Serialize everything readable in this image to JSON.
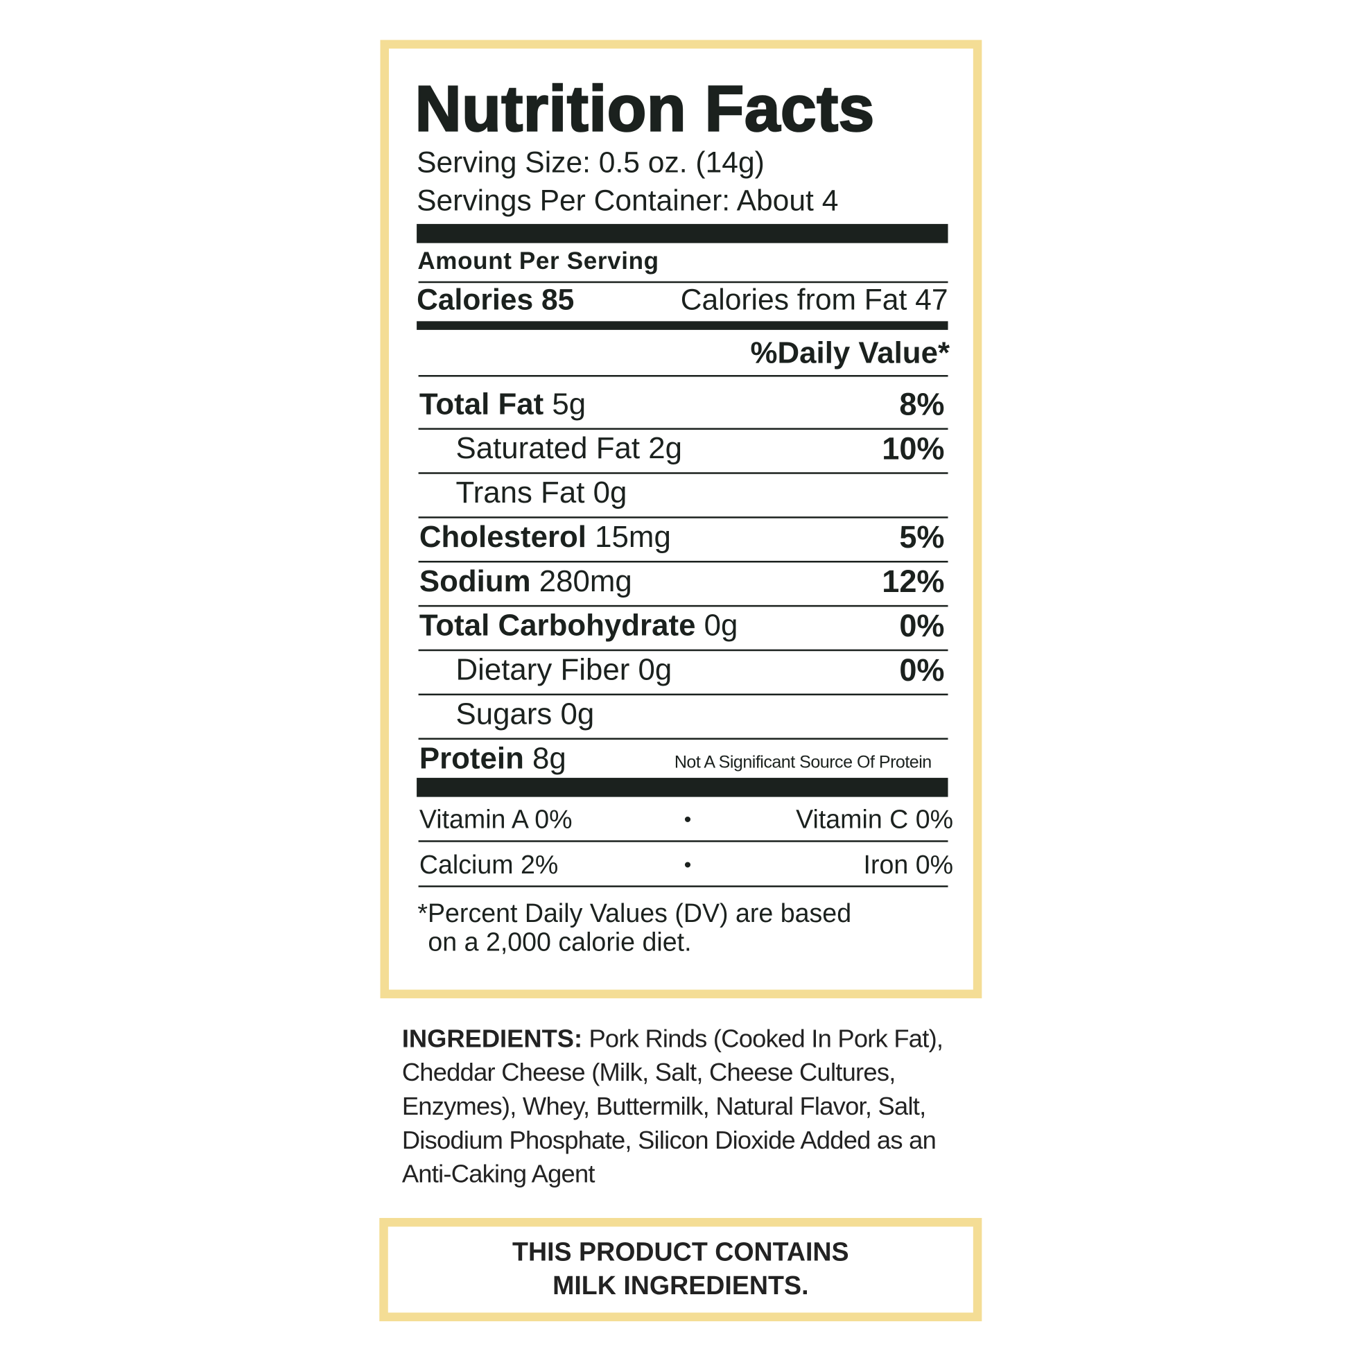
{
  "header": {
    "title": "Nutrition Facts",
    "serving_size": "Serving Size: 0.5 oz. (14g)",
    "servings_per_container": "Servings Per Container: About 4"
  },
  "amount_per_serving": "Amount Per Serving",
  "calories": {
    "label": "Calories 85",
    "from_fat": "Calories from Fat 47"
  },
  "daily_value_header": "%Daily Value*",
  "nutrients": [
    {
      "name": "Total Fat",
      "amount": "5g",
      "dv": "8%",
      "sub": [
        {
          "name": "Saturated Fat",
          "amount": "2g",
          "dv": "10%"
        },
        {
          "name": "Trans Fat",
          "amount": "0g"
        }
      ]
    },
    {
      "name": "Cholesterol",
      "amount": "15mg",
      "dv": "5%"
    },
    {
      "name": "Sodium",
      "amount": "280mg",
      "dv": "12%"
    },
    {
      "name": "Total Carbohydrate",
      "amount": "0g",
      "dv": "0%",
      "sub": [
        {
          "name": "Dietary Fiber",
          "amount": "0g",
          "dv": "0%"
        },
        {
          "name": "Sugars",
          "amount": "0g"
        }
      ]
    },
    {
      "name": "Protein",
      "amount": "8g",
      "note": "Not A Significant Source Of Protein"
    }
  ],
  "vitamins": {
    "separator": "•",
    "rows": [
      [
        "Vitamin A 0%",
        "Vitamin C 0%"
      ],
      [
        "Calcium 2%",
        "Iron 0%"
      ]
    ]
  },
  "footnote": [
    "*Percent Daily Values (DV) are based",
    "on a 2,000 calorie diet."
  ],
  "ingredients": {
    "label": "INGREDIENTS:",
    "lines": [
      "Pork Rinds (Cooked In Pork Fat),",
      "Cheddar Cheese (Milk, Salt, Cheese Cultures,",
      "Enzymes), Whey, Buttermilk, Natural Flavor, Salt,",
      "Disodium Phosphate, Silicon Dioxide Added as an",
      "Anti-Caking Agent"
    ]
  },
  "allergen": [
    "THIS PRODUCT CONTAINS",
    "MILK INGREDIENTS."
  ]
}
